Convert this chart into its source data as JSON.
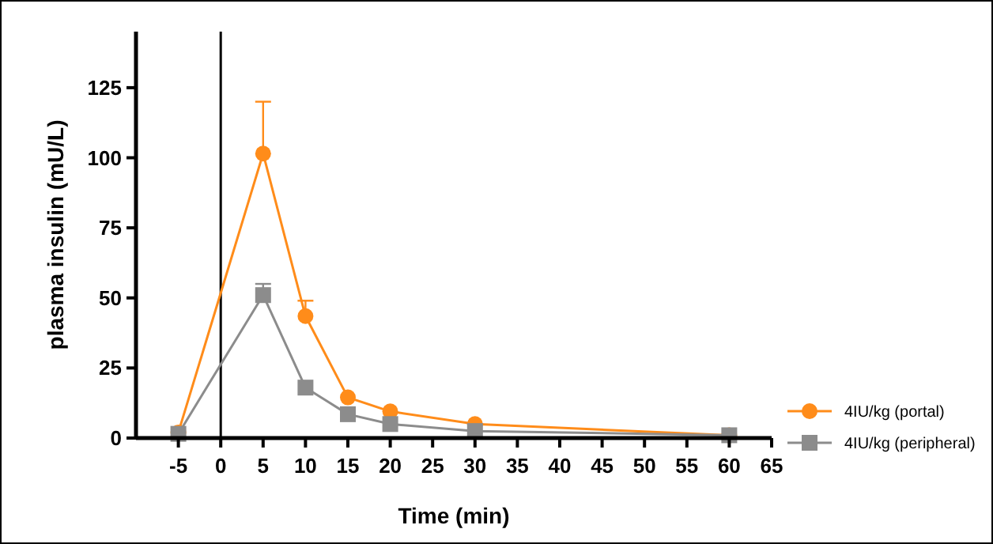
{
  "chart_data": {
    "type": "line",
    "xlabel": "Time (min)",
    "ylabel": "plasma insulin (mU/L)",
    "x": [
      -5,
      5,
      10,
      15,
      20,
      30,
      60
    ],
    "series": [
      {
        "name": "4IU/kg (portal)",
        "color": "#ff8c1a",
        "marker": "circle",
        "values": [
          2,
          101.5,
          43.5,
          14.5,
          9.5,
          5,
          1
        ],
        "errors": [
          null,
          [
            101.5,
            120
          ],
          [
            43.5,
            49
          ],
          null,
          null,
          null,
          null
        ]
      },
      {
        "name": "4IU/kg (peripheral)",
        "color": "#8c8c8c",
        "marker": "square",
        "values": [
          1.5,
          51,
          18,
          8.5,
          5,
          2.5,
          1
        ],
        "errors": [
          null,
          [
            51,
            55
          ],
          null,
          null,
          null,
          null,
          null
        ]
      }
    ],
    "xlim": [
      -10,
      65
    ],
    "xticks": [
      -5,
      0,
      5,
      10,
      15,
      20,
      25,
      30,
      35,
      40,
      45,
      50,
      55,
      60,
      65
    ],
    "ylim": [
      0,
      145
    ],
    "yticks": [
      0,
      25,
      50,
      75,
      100,
      125
    ],
    "ref_lines": [
      {
        "axis": "x",
        "value": 0,
        "color": "#000000"
      }
    ],
    "grid": false,
    "legend": "right"
  }
}
